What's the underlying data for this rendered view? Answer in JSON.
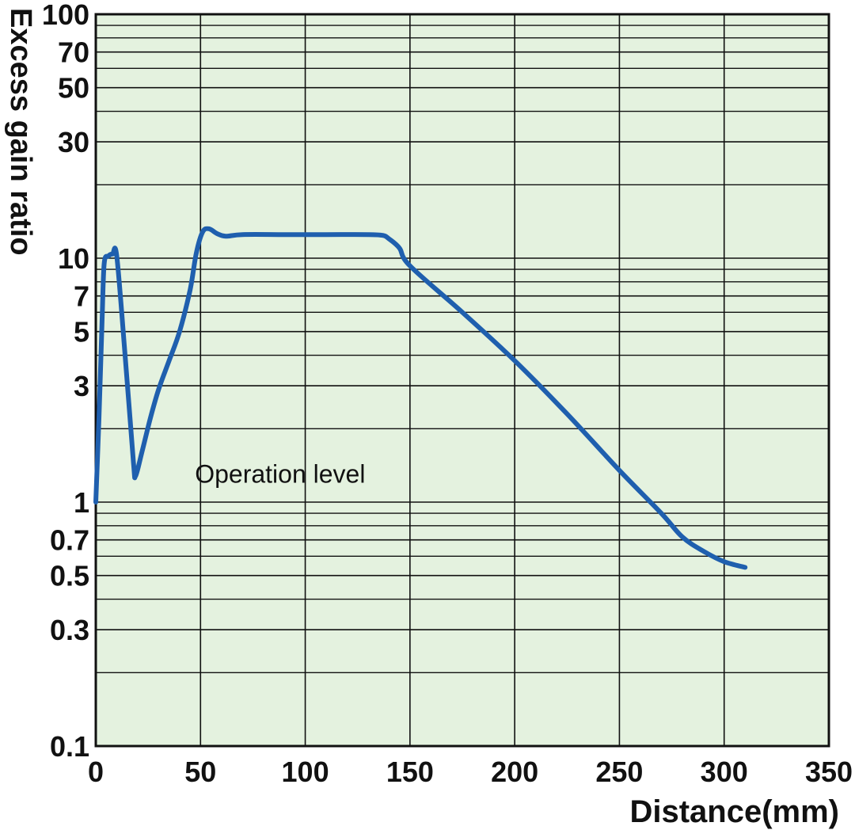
{
  "chart_data": {
    "type": "line",
    "title": "",
    "xlabel": "Distance(mm)",
    "ylabel": "Excess gain ratio",
    "x_scale": "linear",
    "y_scale": "log",
    "xlim": [
      0,
      350
    ],
    "ylim": [
      0.1,
      100
    ],
    "x_ticks": [
      0,
      50,
      100,
      150,
      200,
      250,
      300,
      350
    ],
    "x_tick_labels": [
      "0",
      "50",
      "100",
      "150",
      "200",
      "250",
      "300",
      "350"
    ],
    "y_minor_gridlines": [
      0.2,
      0.4,
      0.6,
      0.8,
      0.9,
      2,
      4,
      6,
      8,
      9,
      20,
      40,
      60,
      80,
      90
    ],
    "y_ticks": [
      0.1,
      0.3,
      0.5,
      0.7,
      1,
      3,
      5,
      7,
      10,
      30,
      50,
      70,
      100
    ],
    "y_tick_labels": [
      "0.1",
      "0.3",
      "0.5",
      "0.7",
      "1",
      "3",
      "5",
      "7",
      "10",
      "30",
      "50",
      "70",
      "100"
    ],
    "grid": true,
    "colors": {
      "background": "#e4f2df",
      "grid": "#111111",
      "line": "#1f5fae"
    },
    "annotations": [
      {
        "text": "Operation level",
        "x": 88,
        "y": 1.2
      }
    ],
    "series": [
      {
        "x": [
          0,
          1.5,
          3,
          4,
          6,
          8,
          10,
          14,
          18,
          19,
          22,
          26,
          30,
          35,
          40,
          45,
          48,
          51,
          54,
          58,
          62,
          70,
          90,
          110,
          130,
          137,
          140,
          145,
          150,
          175,
          200,
          225,
          250,
          270,
          280,
          290,
          300,
          310
        ],
        "y": [
          1,
          2.2,
          5.5,
          9.5,
          10.2,
          10.4,
          10.2,
          4,
          1.45,
          1.28,
          1.6,
          2.2,
          2.9,
          3.8,
          5,
          7.4,
          10.5,
          12.8,
          13.2,
          12.6,
          12.3,
          12.5,
          12.5,
          12.5,
          12.5,
          12.4,
          12,
          11,
          9.3,
          6,
          3.8,
          2.3,
          1.35,
          0.9,
          0.72,
          0.63,
          0.57,
          0.54
        ]
      }
    ]
  }
}
